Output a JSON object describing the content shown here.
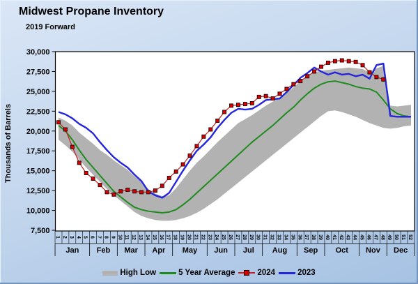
{
  "chart_data": {
    "type": "line",
    "title": "Midwest Propane Inventory",
    "subtitle": "2019 Forward",
    "ylabel": "Thousands of Barrels",
    "ylim": [
      7500,
      30000
    ],
    "yticks": [
      30000,
      27500,
      25000,
      22500,
      20000,
      17500,
      15000,
      12500,
      10000,
      7500
    ],
    "grid": false,
    "legend_position": "bottom",
    "weeks": [
      1,
      2,
      3,
      4,
      5,
      6,
      7,
      8,
      9,
      10,
      11,
      12,
      13,
      14,
      15,
      16,
      17,
      18,
      19,
      20,
      21,
      22,
      23,
      24,
      25,
      26,
      27,
      28,
      29,
      30,
      31,
      32,
      33,
      34,
      35,
      36,
      37,
      38,
      39,
      40,
      41,
      42,
      43,
      44,
      45,
      46,
      47,
      48,
      49,
      50,
      51,
      52
    ],
    "months": [
      {
        "label": "Jan",
        "weeks": 5
      },
      {
        "label": "Feb",
        "weeks": 4
      },
      {
        "label": "Mar",
        "weeks": 4
      },
      {
        "label": "Apr",
        "weeks": 4
      },
      {
        "label": "May",
        "weeks": 5
      },
      {
        "label": "Jun",
        "weeks": 4
      },
      {
        "label": "Jul",
        "weeks": 4
      },
      {
        "label": "Aug",
        "weeks": 5
      },
      {
        "label": "Sep",
        "weeks": 4
      },
      {
        "label": "Oct",
        "weeks": 5
      },
      {
        "label": "Nov",
        "weeks": 4
      },
      {
        "label": "Dec",
        "weeks": 4
      }
    ],
    "series": [
      {
        "name": "High Low",
        "type": "band",
        "color": "#b2b2b2",
        "high": [
          21700,
          21300,
          20700,
          19800,
          19100,
          18400,
          17600,
          17000,
          16300,
          15700,
          15100,
          14300,
          13600,
          12700,
          12100,
          11800,
          11900,
          12800,
          13900,
          15000,
          16000,
          16800,
          17700,
          18600,
          19400,
          20200,
          21000,
          21500,
          22000,
          22600,
          23200,
          23700,
          24200,
          24800,
          25500,
          26300,
          26900,
          27400,
          27600,
          27700,
          27800,
          27900,
          28000,
          27900,
          27800,
          27400,
          27900,
          28200,
          23200,
          23100,
          23200,
          23300
        ],
        "low": [
          18900,
          18200,
          17400,
          16400,
          15400,
          14500,
          13600,
          12700,
          11900,
          11200,
          10500,
          9800,
          9300,
          9000,
          8800,
          8700,
          8700,
          8800,
          9000,
          9300,
          9700,
          10200,
          10800,
          11400,
          12100,
          12800,
          13500,
          14200,
          14900,
          15600,
          16300,
          17000,
          17700,
          18400,
          19100,
          19800,
          20500,
          21200,
          21900,
          22500,
          22600,
          22400,
          22100,
          21800,
          21400,
          21000,
          20700,
          20400,
          20300,
          20400,
          20600,
          20700
        ]
      },
      {
        "name": "5 Year Average",
        "type": "line",
        "color": "#1f8b1f",
        "values": [
          20700,
          20000,
          18900,
          17600,
          16400,
          15400,
          14400,
          13400,
          12400,
          11700,
          11000,
          10400,
          10100,
          9900,
          9800,
          9700,
          9800,
          10100,
          10700,
          11400,
          12200,
          13000,
          13800,
          14600,
          15400,
          16200,
          17000,
          17800,
          18600,
          19300,
          20000,
          20700,
          21500,
          22300,
          23000,
          23900,
          24700,
          25400,
          25900,
          26200,
          26300,
          26100,
          25900,
          25600,
          25400,
          25300,
          24900,
          23900,
          22800,
          22200,
          21900,
          21800
        ]
      },
      {
        "name": "2024",
        "type": "line-marker",
        "color": "#c42121",
        "marker_color": "#dd0000",
        "values": [
          21100,
          20200,
          18000,
          16000,
          14700,
          14000,
          13200,
          12300,
          12000,
          12400,
          12600,
          12400,
          12300,
          12300,
          12500,
          13100,
          14100,
          14900,
          15800,
          16900,
          18100,
          19300,
          20200,
          21300,
          22400,
          23200,
          23300,
          23400,
          23500,
          24300,
          24400,
          24100,
          24700,
          25300,
          25900,
          26300,
          26900,
          27500,
          28100,
          28600,
          28800,
          28900,
          28800,
          28700,
          28300,
          27400,
          26800,
          26500
        ]
      },
      {
        "name": "2023",
        "type": "line",
        "color": "#2525dd",
        "values": [
          22400,
          22100,
          21600,
          20900,
          20400,
          19700,
          18600,
          17600,
          16700,
          16000,
          15400,
          14500,
          13700,
          12400,
          11900,
          11600,
          12200,
          13600,
          15000,
          16300,
          17500,
          18300,
          19200,
          20400,
          21400,
          22300,
          22800,
          22700,
          22800,
          23300,
          23900,
          24000,
          24100,
          24900,
          25800,
          26700,
          27300,
          28000,
          27500,
          27100,
          27400,
          27100,
          27200,
          26900,
          27100,
          26600,
          28300,
          28500,
          21900,
          21800,
          21800,
          21800
        ]
      }
    ]
  }
}
